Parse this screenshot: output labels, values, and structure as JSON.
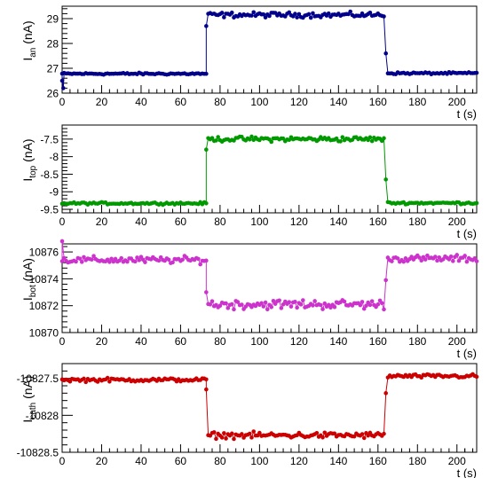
{
  "chart_data": [
    {
      "type": "line",
      "xlabel": "t (s)",
      "ylabel_main": "I",
      "ylabel_sub": "an",
      "ylabel_unit": "(nA)",
      "xlim": [
        0,
        210
      ],
      "ylim": [
        26,
        29.5
      ],
      "xticks": [
        0,
        20,
        40,
        60,
        80,
        100,
        120,
        140,
        160,
        180,
        200
      ],
      "yticks": [
        26,
        27,
        28,
        29
      ],
      "ytick_labels": [
        "26",
        "27",
        "28",
        "29"
      ],
      "color": "#00008b",
      "series": [
        {
          "segments": [
            {
              "t_start": 0,
              "t_end": 73,
              "level": 26.78,
              "noise": 0.04
            },
            {
              "t_start": 74,
              "t_end": 163,
              "level": 29.15,
              "noise": 0.1
            },
            {
              "t_start": 165,
              "t_end": 210,
              "level": 26.8,
              "noise": 0.04
            }
          ],
          "transition_points": [
            [
              0,
              26.5
            ],
            [
              0.6,
              26.2
            ],
            [
              73,
              28.7
            ],
            [
              164,
              27.6
            ]
          ]
        }
      ]
    },
    {
      "type": "line",
      "xlabel": "t (s)",
      "ylabel_main": "I",
      "ylabel_sub": "top",
      "ylabel_unit": "(nA)",
      "xlim": [
        0,
        210
      ],
      "ylim": [
        -9.6,
        -7.1
      ],
      "xticks": [
        0,
        20,
        40,
        60,
        80,
        100,
        120,
        140,
        160,
        180,
        200
      ],
      "yticks": [
        -9.5,
        -9,
        -8.5,
        -8,
        -7.5
      ],
      "ytick_labels": [
        "-9.5",
        "-9",
        "-8.5",
        "-8",
        "-7.5"
      ],
      "color": "#009900",
      "series": [
        {
          "segments": [
            {
              "t_start": 0,
              "t_end": 73,
              "level": -9.33,
              "noise": 0.03
            },
            {
              "t_start": 74,
              "t_end": 163,
              "level": -7.5,
              "noise": 0.07
            },
            {
              "t_start": 165,
              "t_end": 210,
              "level": -9.32,
              "noise": 0.03
            }
          ],
          "transition_points": [
            [
              73,
              -7.8
            ],
            [
              164,
              -8.65
            ]
          ]
        }
      ]
    },
    {
      "type": "line",
      "xlabel": "t (s)",
      "ylabel_main": "I",
      "ylabel_sub": "bot",
      "ylabel_unit": "(nA)",
      "xlim": [
        0,
        210
      ],
      "ylim": [
        10870,
        10876.6
      ],
      "xticks": [
        0,
        20,
        40,
        60,
        80,
        100,
        120,
        140,
        160,
        180,
        200
      ],
      "yticks": [
        10870,
        10872,
        10874,
        10876
      ],
      "ytick_labels": [
        "10870",
        "10872",
        "10874",
        "10876"
      ],
      "color": "#cc33cc",
      "series": [
        {
          "segments": [
            {
              "t_start": 0,
              "t_end": 73,
              "level": 10875.4,
              "noise": 0.25
            },
            {
              "t_start": 74,
              "t_end": 163,
              "level": 10872.1,
              "noise": 0.35
            },
            {
              "t_start": 165,
              "t_end": 210,
              "level": 10875.5,
              "noise": 0.25
            }
          ],
          "transition_points": [
            [
              0,
              10876.8
            ],
            [
              73,
              10873
            ],
            [
              164,
              10873.9
            ]
          ]
        }
      ]
    },
    {
      "type": "line",
      "xlabel": "t (s)",
      "ylabel_main": "I",
      "ylabel_sub": "cath",
      "ylabel_unit": "(nA)",
      "xlim": [
        0,
        210
      ],
      "ylim": [
        -10828.5,
        -10827.3
      ],
      "xticks": [
        0,
        20,
        40,
        60,
        80,
        100,
        120,
        140,
        160,
        180,
        200
      ],
      "yticks": [
        -10828.5,
        -10828,
        -10827.5
      ],
      "ytick_labels": [
        "-10828.5",
        "-10828",
        "-10827.5"
      ],
      "color": "#cc0000",
      "series": [
        {
          "segments": [
            {
              "t_start": 0,
              "t_end": 73,
              "level": -10827.52,
              "noise": 0.025
            },
            {
              "t_start": 74,
              "t_end": 163,
              "level": -10828.27,
              "noise": 0.04
            },
            {
              "t_start": 165,
              "t_end": 210,
              "level": -10827.47,
              "noise": 0.025
            }
          ],
          "transition_points": [
            [
              73,
              -10827.65
            ],
            [
              164,
              -10827.7
            ]
          ]
        }
      ]
    }
  ]
}
